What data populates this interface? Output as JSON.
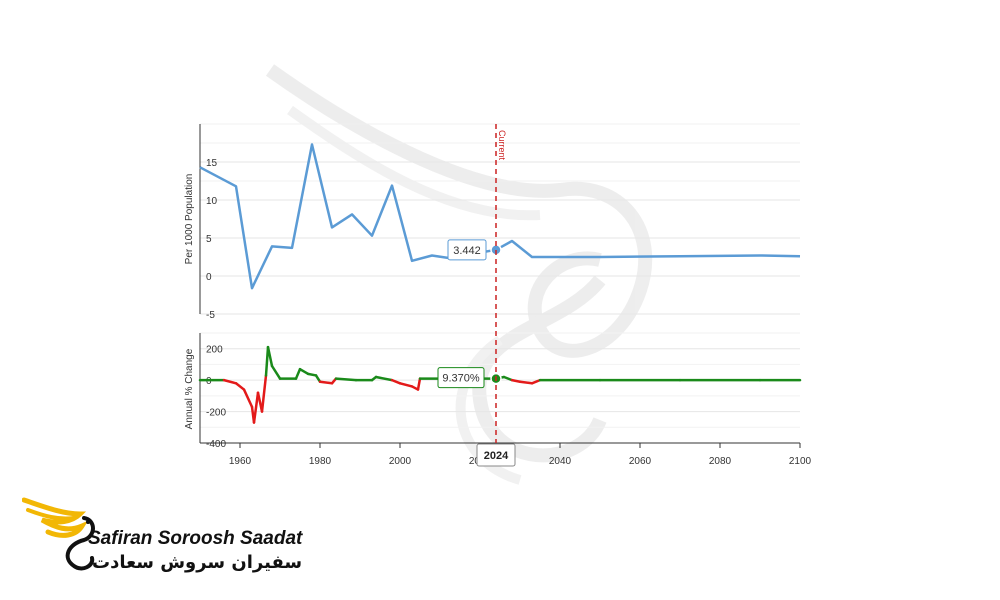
{
  "colors": {
    "rate_line": "#5b9bd5",
    "change_positive": "#1a8a1a",
    "change_negative": "#e31a1a",
    "current_marker": "#cc2222",
    "logo_gold": "#f2b705"
  },
  "chart_data": [
    {
      "type": "line",
      "ylabel": "Per 1000 Population",
      "ylim": [
        -5,
        20
      ],
      "yticks": [
        -5,
        0,
        5,
        10,
        15
      ],
      "xlim": [
        1950,
        2100
      ],
      "grid": true,
      "series": [
        {
          "x": [
            1950,
            1959,
            1963,
            1968,
            1973,
            1978,
            1983,
            1988,
            1993,
            1998,
            2003,
            2008,
            2013,
            2018,
            2024,
            2028,
            2033,
            2050,
            2070,
            2090,
            2100
          ],
          "values": [
            14.3,
            11.8,
            -1.6,
            3.9,
            3.7,
            17.3,
            6.4,
            8.1,
            5.3,
            11.9,
            2.0,
            2.7,
            2.3,
            2.9,
            3.442,
            4.6,
            2.5,
            2.5,
            2.6,
            2.7,
            2.6
          ]
        }
      ],
      "tooltip": "3.442"
    },
    {
      "type": "line",
      "ylabel": "Annual % Change",
      "ylim": [
        -400,
        300
      ],
      "yticks": [
        -400,
        -200,
        0,
        200
      ],
      "xlim": [
        1950,
        2100
      ],
      "xticks": [
        "1960",
        "1980",
        "2000",
        "2020",
        "2040",
        "2060",
        "2080",
        "2100"
      ],
      "grid": true,
      "series": [
        {
          "x": [
            1950,
            1956,
            1959,
            1961,
            1963,
            1963.5,
            1964.5,
            1965.5,
            1966.5,
            1967,
            1968,
            1970,
            1974,
            1975,
            1977,
            1979,
            1980,
            1983,
            1984,
            1989,
            1993,
            1994,
            1998,
            2000,
            2003,
            2004.5,
            2005,
            2010,
            2013,
            2018,
            2020,
            2024,
            2026,
            2028,
            2030,
            2033,
            2035,
            2050,
            2070,
            2090,
            2100
          ],
          "values": [
            0,
            0,
            -20,
            -60,
            -170,
            -270,
            -80,
            -200,
            30,
            210,
            90,
            10,
            10,
            70,
            40,
            30,
            -10,
            -20,
            10,
            0,
            0,
            20,
            0,
            -20,
            -40,
            -60,
            10,
            10,
            0,
            0,
            10,
            9.37,
            20,
            0,
            -10,
            -20,
            0,
            0,
            0,
            0,
            0
          ]
        }
      ],
      "tooltip": "9.370%"
    }
  ],
  "current_label": "Current",
  "current_year": "2024",
  "brand": {
    "name_en": "Safiran Soroosh Saadat",
    "name_fa": "سفیران سروش سعادت"
  }
}
